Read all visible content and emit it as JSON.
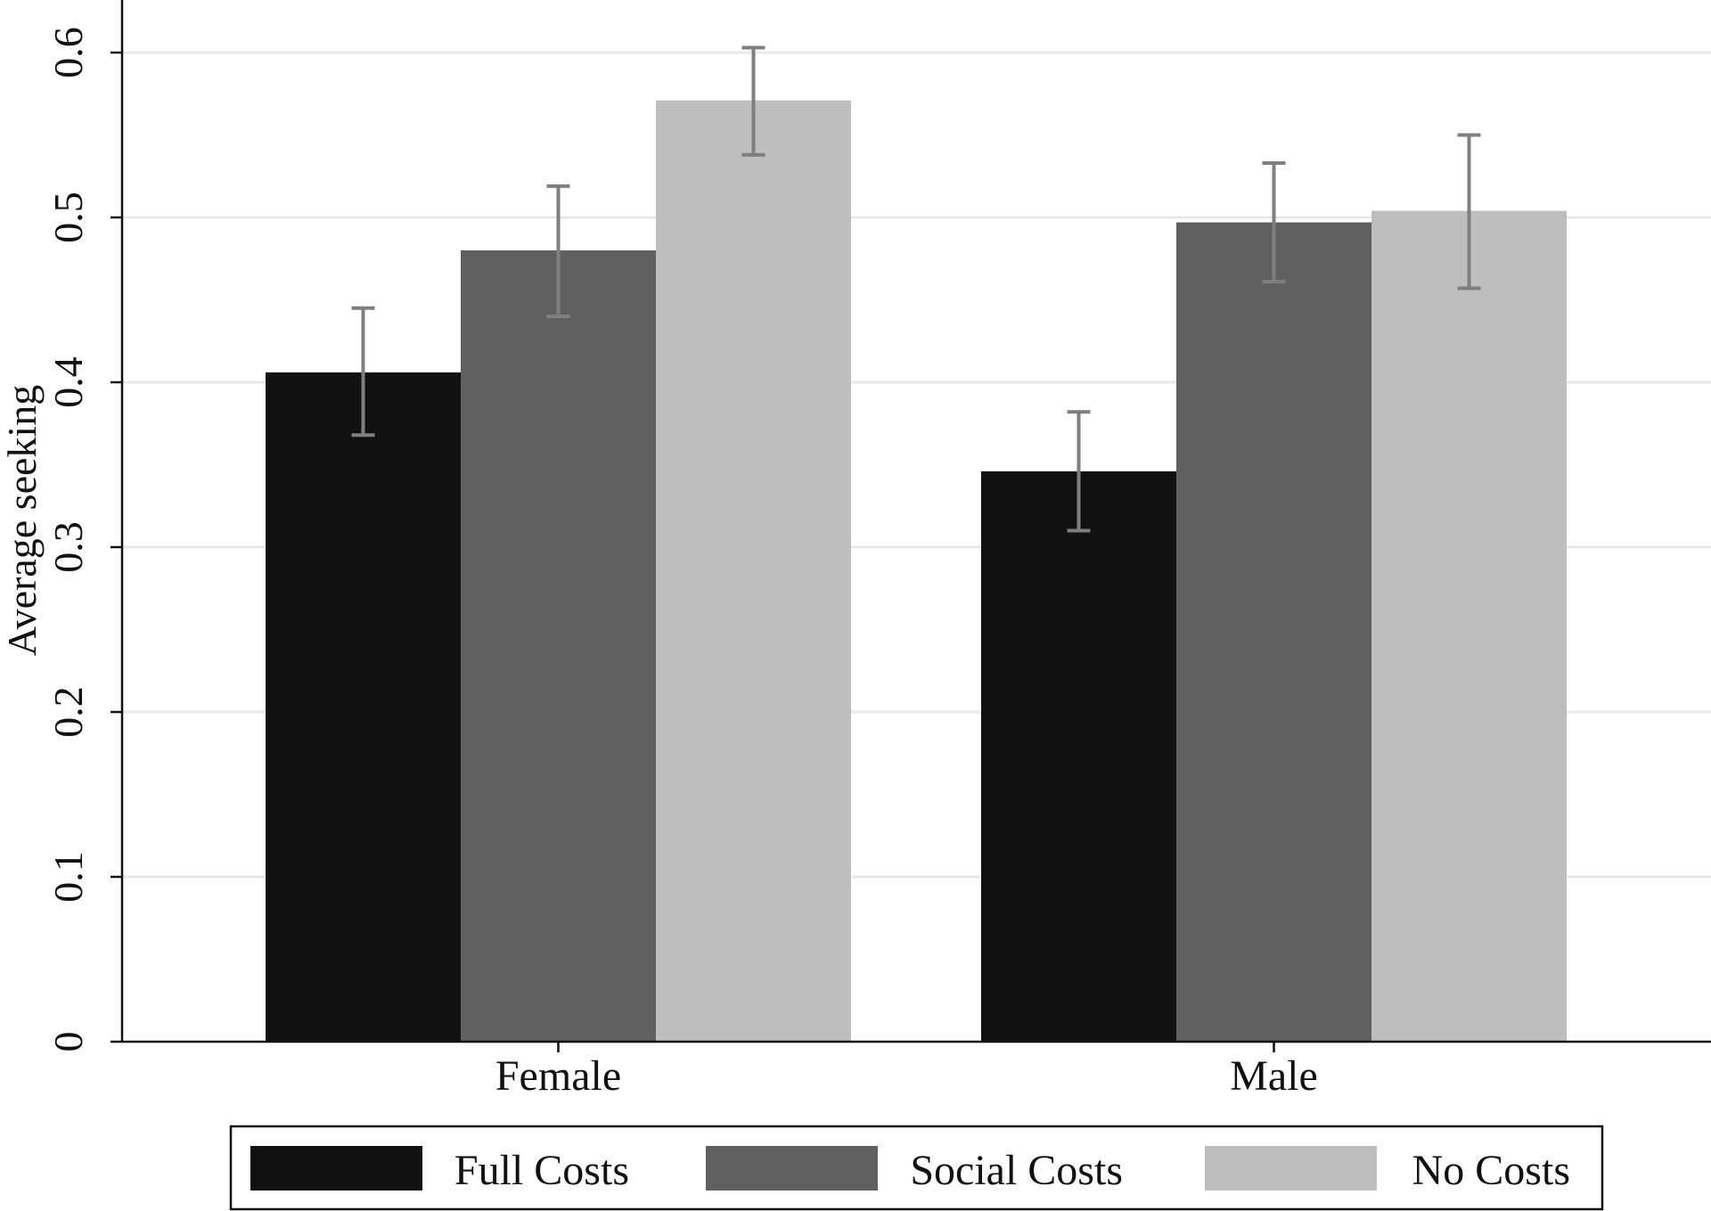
{
  "chart_data": {
    "type": "bar",
    "title": "",
    "xlabel": "",
    "ylabel": "Average seeking",
    "ylim": [
      0,
      0.6
    ],
    "yticks": [
      0,
      0.1,
      0.2,
      0.3,
      0.4,
      0.5,
      0.6
    ],
    "ytick_labels": [
      "0",
      "0.1",
      "0.2",
      "0.3",
      "0.4",
      "0.5",
      "0.6"
    ],
    "grid": true,
    "legend_position": "bottom",
    "categories": [
      "Female",
      "Male"
    ],
    "series": [
      {
        "name": "Full Costs",
        "color": "#111111",
        "values": [
          0.406,
          0.346
        ],
        "ci_low": [
          0.368,
          0.31
        ],
        "ci_high": [
          0.445,
          0.382
        ]
      },
      {
        "name": "Social Costs",
        "color": "#606060",
        "values": [
          0.48,
          0.497
        ],
        "ci_low": [
          0.44,
          0.461
        ],
        "ci_high": [
          0.519,
          0.533
        ]
      },
      {
        "name": "No Costs",
        "color": "#bebebe",
        "values": [
          0.571,
          0.504
        ],
        "ci_low": [
          0.538,
          0.457
        ],
        "ci_high": [
          0.603,
          0.55
        ]
      }
    ],
    "errorbar_color": "#7f7f7f",
    "grid_color": "#e8e8e8"
  }
}
